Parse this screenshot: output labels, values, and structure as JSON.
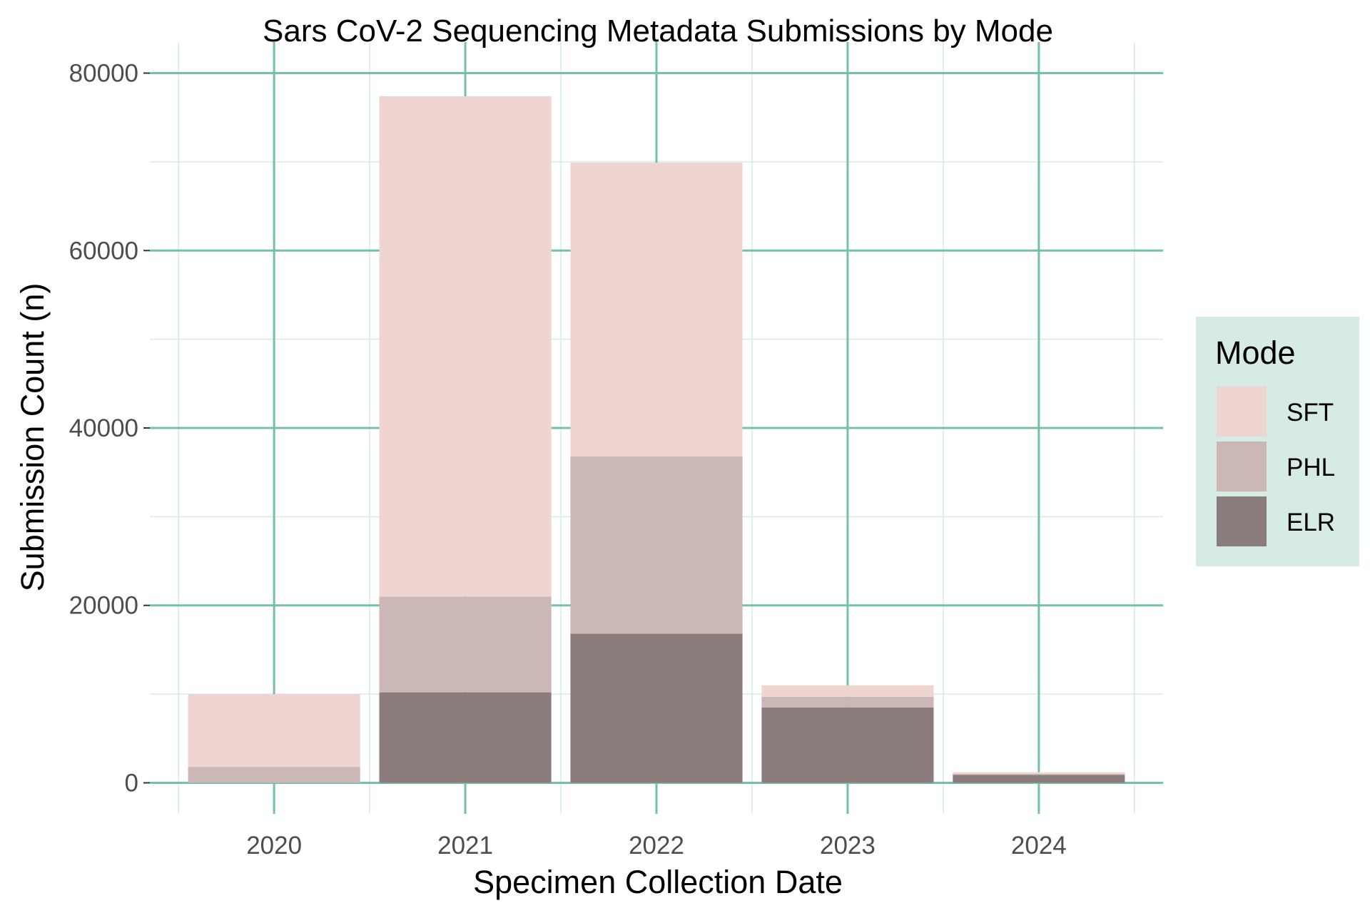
{
  "chart_data": {
    "type": "bar",
    "stacked": true,
    "title": "Sars CoV-2 Sequencing Metadata Submissions by Mode",
    "xlabel": "Specimen Collection Date",
    "ylabel": "Submission Count (n)",
    "categories": [
      "2020",
      "2021",
      "2022",
      "2023",
      "2024"
    ],
    "ylim": [
      -3500,
      83500
    ],
    "yticks": [
      0,
      20000,
      40000,
      60000,
      80000
    ],
    "y_minor_ticks": [
      10000,
      30000,
      50000,
      70000
    ],
    "grid": true,
    "legend_position": "right",
    "legend_title": "Mode",
    "series": [
      {
        "name": "ELR",
        "color": "#8b7d7b",
        "values": [
          0,
          10200,
          16800,
          8500,
          900
        ]
      },
      {
        "name": "PHL",
        "color": "#cbb7b5",
        "values": [
          1800,
          10800,
          20000,
          1200,
          100
        ]
      },
      {
        "name": "SFT",
        "color": "#efd5d2",
        "values": [
          8200,
          56400,
          33100,
          1300,
          200
        ]
      }
    ],
    "legend_order": [
      "SFT",
      "PHL",
      "ELR"
    ],
    "colors": {
      "grid_major": "#74c0a8",
      "grid_minor": "#d3ece4",
      "legend_background": "#d6ebe4"
    }
  }
}
